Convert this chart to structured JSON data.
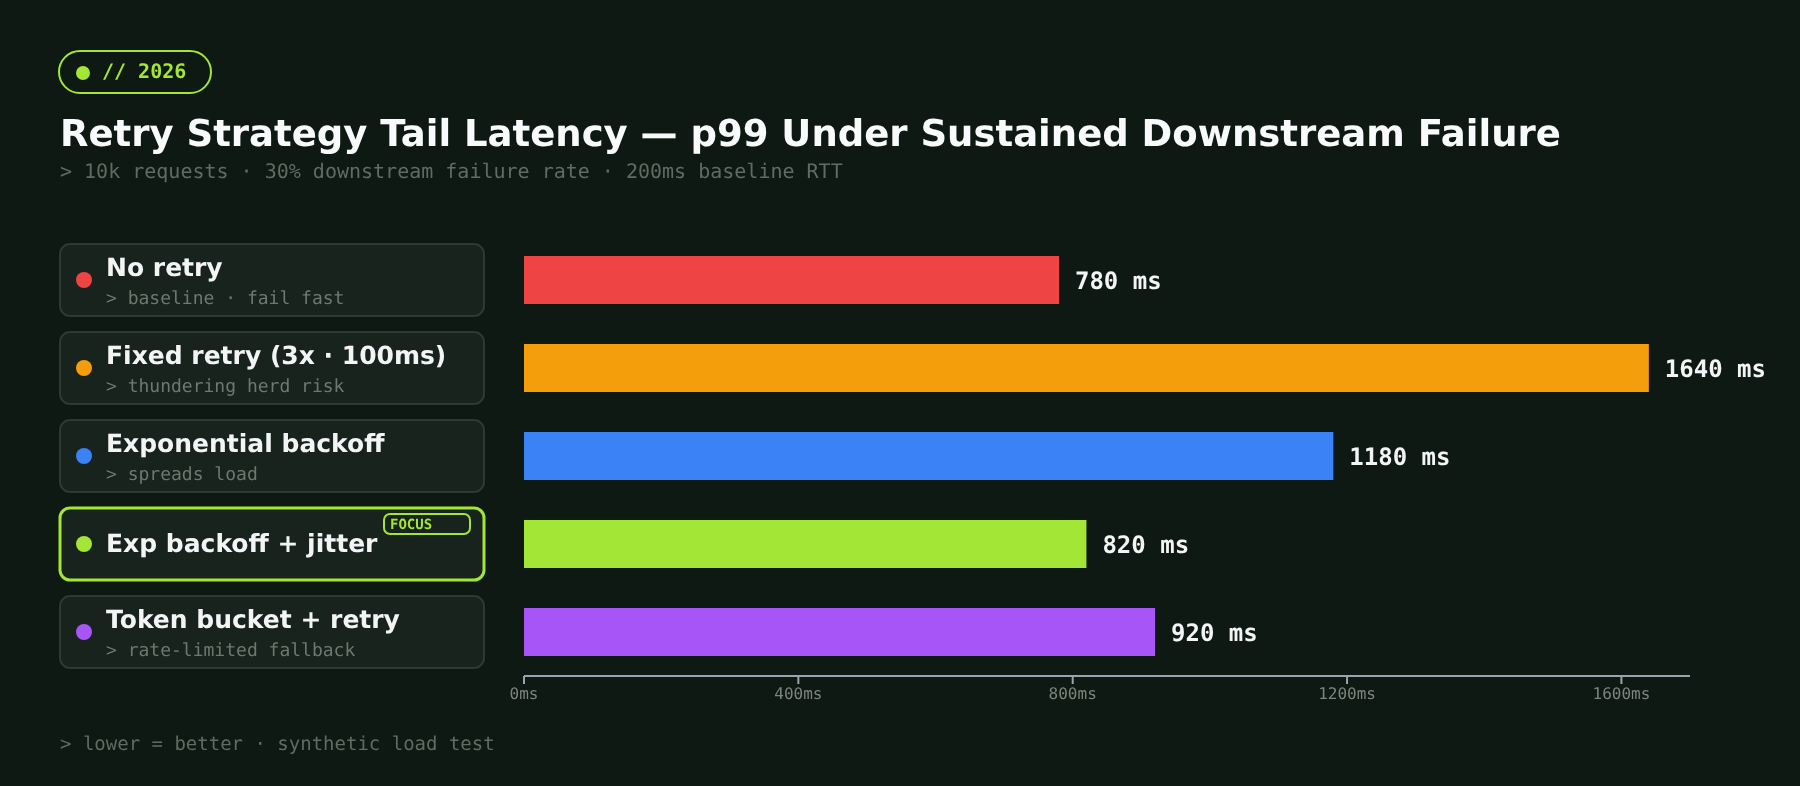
{
  "chart_data": {
    "type": "bar",
    "orientation": "horizontal",
    "title": "Retry Strategy Tail Latency — p99 Under Sustained Downstream Failure",
    "subtitle": "> 10k requests · 30% downstream failure rate · 200ms baseline RTT",
    "categories": [
      "No retry",
      "Fixed retry (3x · 100ms)",
      "Exponential backoff",
      "Exp backoff + jitter",
      "Token bucket + retry"
    ],
    "values": [
      780,
      1640,
      1180,
      820,
      920
    ],
    "colors": [
      "#ef4444",
      "#f59e0b",
      "#3b82f6",
      "#a3e635",
      "#a855f7"
    ],
    "value_labels": [
      "780 ms",
      "1640 ms",
      "1180 ms",
      "820 ms",
      "920 ms"
    ],
    "xlim": [
      0,
      1700
    ],
    "xticks": [
      {
        "value": 0,
        "label": "0ms"
      },
      {
        "value": 400,
        "label": "400ms"
      },
      {
        "value": 800,
        "label": "800ms"
      },
      {
        "value": 1200,
        "label": "1200ms"
      },
      {
        "value": 1600,
        "label": "1600ms"
      }
    ],
    "annotations": [
      "// 2026",
      "> baseline · fail fast",
      "> thundering herd risk",
      "> spreads load",
      "FOCUS",
      "> rate-limited fallback",
      "> lower = better · synthetic load test"
    ]
  }
}
